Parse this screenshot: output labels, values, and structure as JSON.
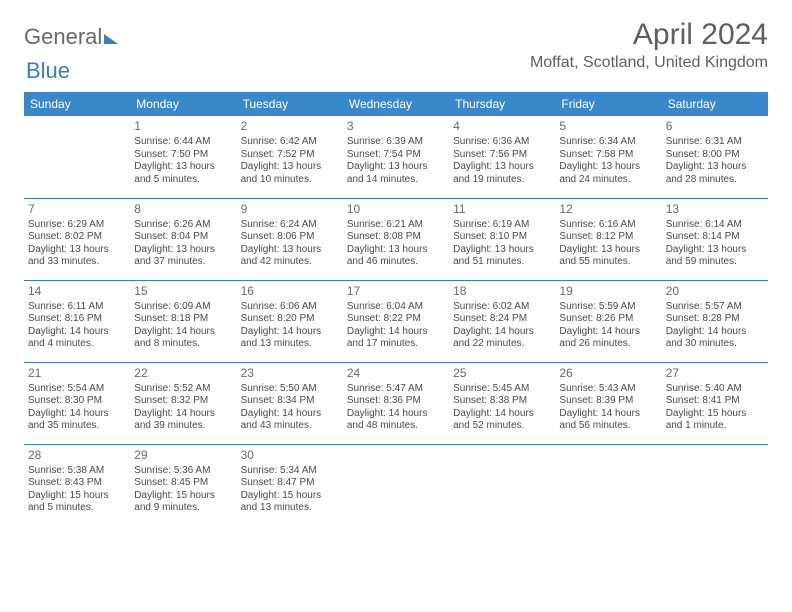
{
  "logo": {
    "part1": "General",
    "part2": "Blue"
  },
  "title": "April 2024",
  "location": "Moffat, Scotland, United Kingdom",
  "colors": {
    "header_bg": "#3a88c9",
    "header_text": "#ffffff",
    "rule": "#3a7ebd",
    "text": "#4a4a4a",
    "accent": "#3a7ebd"
  },
  "day_headers": [
    "Sunday",
    "Monday",
    "Tuesday",
    "Wednesday",
    "Thursday",
    "Friday",
    "Saturday"
  ],
  "weeks": [
    [
      null,
      {
        "n": "1",
        "sr": "Sunrise: 6:44 AM",
        "ss": "Sunset: 7:50 PM",
        "d1": "Daylight: 13 hours",
        "d2": "and 5 minutes."
      },
      {
        "n": "2",
        "sr": "Sunrise: 6:42 AM",
        "ss": "Sunset: 7:52 PM",
        "d1": "Daylight: 13 hours",
        "d2": "and 10 minutes."
      },
      {
        "n": "3",
        "sr": "Sunrise: 6:39 AM",
        "ss": "Sunset: 7:54 PM",
        "d1": "Daylight: 13 hours",
        "d2": "and 14 minutes."
      },
      {
        "n": "4",
        "sr": "Sunrise: 6:36 AM",
        "ss": "Sunset: 7:56 PM",
        "d1": "Daylight: 13 hours",
        "d2": "and 19 minutes."
      },
      {
        "n": "5",
        "sr": "Sunrise: 6:34 AM",
        "ss": "Sunset: 7:58 PM",
        "d1": "Daylight: 13 hours",
        "d2": "and 24 minutes."
      },
      {
        "n": "6",
        "sr": "Sunrise: 6:31 AM",
        "ss": "Sunset: 8:00 PM",
        "d1": "Daylight: 13 hours",
        "d2": "and 28 minutes."
      }
    ],
    [
      {
        "n": "7",
        "sr": "Sunrise: 6:29 AM",
        "ss": "Sunset: 8:02 PM",
        "d1": "Daylight: 13 hours",
        "d2": "and 33 minutes."
      },
      {
        "n": "8",
        "sr": "Sunrise: 6:26 AM",
        "ss": "Sunset: 8:04 PM",
        "d1": "Daylight: 13 hours",
        "d2": "and 37 minutes."
      },
      {
        "n": "9",
        "sr": "Sunrise: 6:24 AM",
        "ss": "Sunset: 8:06 PM",
        "d1": "Daylight: 13 hours",
        "d2": "and 42 minutes."
      },
      {
        "n": "10",
        "sr": "Sunrise: 6:21 AM",
        "ss": "Sunset: 8:08 PM",
        "d1": "Daylight: 13 hours",
        "d2": "and 46 minutes."
      },
      {
        "n": "11",
        "sr": "Sunrise: 6:19 AM",
        "ss": "Sunset: 8:10 PM",
        "d1": "Daylight: 13 hours",
        "d2": "and 51 minutes."
      },
      {
        "n": "12",
        "sr": "Sunrise: 6:16 AM",
        "ss": "Sunset: 8:12 PM",
        "d1": "Daylight: 13 hours",
        "d2": "and 55 minutes."
      },
      {
        "n": "13",
        "sr": "Sunrise: 6:14 AM",
        "ss": "Sunset: 8:14 PM",
        "d1": "Daylight: 13 hours",
        "d2": "and 59 minutes."
      }
    ],
    [
      {
        "n": "14",
        "sr": "Sunrise: 6:11 AM",
        "ss": "Sunset: 8:16 PM",
        "d1": "Daylight: 14 hours",
        "d2": "and 4 minutes."
      },
      {
        "n": "15",
        "sr": "Sunrise: 6:09 AM",
        "ss": "Sunset: 8:18 PM",
        "d1": "Daylight: 14 hours",
        "d2": "and 8 minutes."
      },
      {
        "n": "16",
        "sr": "Sunrise: 6:06 AM",
        "ss": "Sunset: 8:20 PM",
        "d1": "Daylight: 14 hours",
        "d2": "and 13 minutes."
      },
      {
        "n": "17",
        "sr": "Sunrise: 6:04 AM",
        "ss": "Sunset: 8:22 PM",
        "d1": "Daylight: 14 hours",
        "d2": "and 17 minutes."
      },
      {
        "n": "18",
        "sr": "Sunrise: 6:02 AM",
        "ss": "Sunset: 8:24 PM",
        "d1": "Daylight: 14 hours",
        "d2": "and 22 minutes."
      },
      {
        "n": "19",
        "sr": "Sunrise: 5:59 AM",
        "ss": "Sunset: 8:26 PM",
        "d1": "Daylight: 14 hours",
        "d2": "and 26 minutes."
      },
      {
        "n": "20",
        "sr": "Sunrise: 5:57 AM",
        "ss": "Sunset: 8:28 PM",
        "d1": "Daylight: 14 hours",
        "d2": "and 30 minutes."
      }
    ],
    [
      {
        "n": "21",
        "sr": "Sunrise: 5:54 AM",
        "ss": "Sunset: 8:30 PM",
        "d1": "Daylight: 14 hours",
        "d2": "and 35 minutes."
      },
      {
        "n": "22",
        "sr": "Sunrise: 5:52 AM",
        "ss": "Sunset: 8:32 PM",
        "d1": "Daylight: 14 hours",
        "d2": "and 39 minutes."
      },
      {
        "n": "23",
        "sr": "Sunrise: 5:50 AM",
        "ss": "Sunset: 8:34 PM",
        "d1": "Daylight: 14 hours",
        "d2": "and 43 minutes."
      },
      {
        "n": "24",
        "sr": "Sunrise: 5:47 AM",
        "ss": "Sunset: 8:36 PM",
        "d1": "Daylight: 14 hours",
        "d2": "and 48 minutes."
      },
      {
        "n": "25",
        "sr": "Sunrise: 5:45 AM",
        "ss": "Sunset: 8:38 PM",
        "d1": "Daylight: 14 hours",
        "d2": "and 52 minutes."
      },
      {
        "n": "26",
        "sr": "Sunrise: 5:43 AM",
        "ss": "Sunset: 8:39 PM",
        "d1": "Daylight: 14 hours",
        "d2": "and 56 minutes."
      },
      {
        "n": "27",
        "sr": "Sunrise: 5:40 AM",
        "ss": "Sunset: 8:41 PM",
        "d1": "Daylight: 15 hours",
        "d2": "and 1 minute."
      }
    ],
    [
      {
        "n": "28",
        "sr": "Sunrise: 5:38 AM",
        "ss": "Sunset: 8:43 PM",
        "d1": "Daylight: 15 hours",
        "d2": "and 5 minutes."
      },
      {
        "n": "29",
        "sr": "Sunrise: 5:36 AM",
        "ss": "Sunset: 8:45 PM",
        "d1": "Daylight: 15 hours",
        "d2": "and 9 minutes."
      },
      {
        "n": "30",
        "sr": "Sunrise: 5:34 AM",
        "ss": "Sunset: 8:47 PM",
        "d1": "Daylight: 15 hours",
        "d2": "and 13 minutes."
      },
      null,
      null,
      null,
      null
    ]
  ]
}
